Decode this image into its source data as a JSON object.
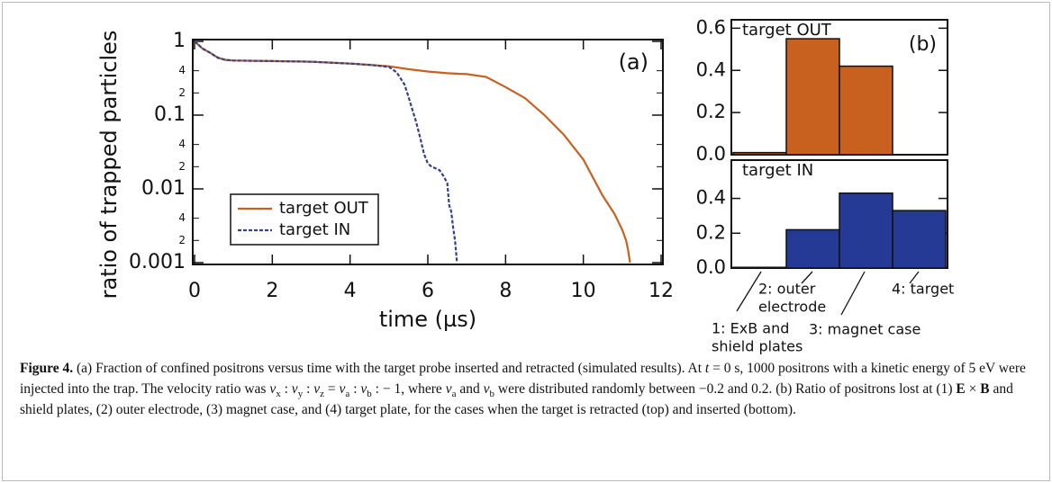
{
  "chart_data": [
    {
      "type": "line",
      "panel_label": "(a)",
      "x_label": "time (µs)",
      "y_label": "ratio of trapped particles",
      "xlim": [
        0,
        12
      ],
      "xticks": [
        0,
        2,
        4,
        6,
        8,
        10,
        12
      ],
      "ylim": [
        0.001,
        1
      ],
      "log_y": true,
      "yticks": [
        0.001,
        0.01,
        0.1,
        1
      ],
      "yminorticks": [
        {
          "value": 0.002,
          "label": "2"
        },
        {
          "value": 0.004,
          "label": "4"
        },
        {
          "value": 0.02,
          "label": "2"
        },
        {
          "value": 0.04,
          "label": "4"
        },
        {
          "value": 0.2,
          "label": "2"
        },
        {
          "value": 0.4,
          "label": "4"
        }
      ],
      "legend": "lower left",
      "series": [
        {
          "name": "target OUT",
          "color": "#c8601f",
          "dashed": false,
          "x": [
            0,
            0.1,
            0.2,
            0.4,
            0.6,
            0.8,
            1,
            2,
            3,
            4,
            4.5,
            5,
            5.5,
            6,
            6.5,
            7,
            7.5,
            8,
            8.5,
            9,
            9.5,
            10,
            10.5,
            10.8,
            11,
            11.1,
            11.15,
            11.2
          ],
          "values": [
            1,
            0.9,
            0.8,
            0.7,
            0.6,
            0.56,
            0.55,
            0.54,
            0.53,
            0.5,
            0.48,
            0.46,
            0.42,
            0.39,
            0.37,
            0.36,
            0.33,
            0.24,
            0.17,
            0.1,
            0.054,
            0.025,
            0.008,
            0.0046,
            0.0028,
            0.002,
            0.0015,
            0.001
          ]
        },
        {
          "name": "target IN",
          "color": "#34428a",
          "dashed": true,
          "x": [
            0,
            0.1,
            0.2,
            0.4,
            0.6,
            0.8,
            1,
            2,
            3,
            4,
            4.5,
            5,
            5.2,
            5.4,
            5.5,
            5.6,
            5.7,
            5.8,
            5.9,
            6,
            6.1,
            6.3,
            6.4,
            6.5,
            6.55,
            6.6,
            6.65,
            6.7,
            6.75
          ],
          "values": [
            1,
            0.9,
            0.8,
            0.7,
            0.6,
            0.56,
            0.55,
            0.54,
            0.53,
            0.5,
            0.48,
            0.45,
            0.38,
            0.26,
            0.18,
            0.12,
            0.08,
            0.05,
            0.03,
            0.022,
            0.02,
            0.018,
            0.015,
            0.012,
            0.006,
            0.005,
            0.003,
            0.002,
            0.001
          ]
        }
      ]
    },
    {
      "type": "bar",
      "label": "target OUT",
      "panel_label": "(b)",
      "color": "#c8601f",
      "values": [
        0.01,
        0.55,
        0.42,
        0
      ],
      "ylim": [
        0,
        0.64
      ],
      "yticks": [
        {
          "value": 0,
          "label": "0.0"
        },
        0.2,
        0.4,
        0.6
      ]
    },
    {
      "type": "bar",
      "label": "target IN",
      "color": "#243a94",
      "categories": [
        [
          "1: ExB and",
          "shield plates"
        ],
        [
          "2: outer",
          "electrode"
        ],
        [
          "3: magnet case"
        ],
        [
          "4: target"
        ]
      ],
      "values": [
        0.004,
        0.22,
        0.43,
        0.33
      ],
      "ylim": [
        0,
        0.62
      ],
      "yticks": [
        {
          "value": 0,
          "label": "0.0"
        },
        0.2,
        0.4
      ]
    }
  ],
  "caption": [
    {
      "b": "Figure 4."
    },
    " (a) Fraction of confined positrons versus time with the target probe inserted and retracted (simulated results). At ",
    {
      "i": "t"
    },
    " = 0 s, 1000 positrons with a kinetic energy of 5 eV were injected into the trap. The velocity ratio was ",
    {
      "i": "v"
    },
    {
      "sub": "x"
    },
    " : ",
    {
      "i": "v"
    },
    {
      "sub": "y"
    },
    " : ",
    {
      "i": "v"
    },
    {
      "sub": "z"
    },
    " = ",
    {
      "i": "v"
    },
    {
      "sub": "a"
    },
    " : ",
    {
      "i": "v"
    },
    {
      "sub": "b"
    },
    " : − 1, where ",
    {
      "i": "v"
    },
    {
      "sub": "a"
    },
    " and ",
    {
      "i": "v"
    },
    {
      "sub": "b"
    },
    " were distributed randomly between −0.2 and 0.2. (b) Ratio of positrons lost at (1) ",
    {
      "b": "E"
    },
    " × ",
    {
      "b": "B"
    },
    " and shield plates, (2) outer electrode, (3) magnet case, and (4) target plate, for the cases when the target is retracted (top) and inserted (bottom)."
  ]
}
